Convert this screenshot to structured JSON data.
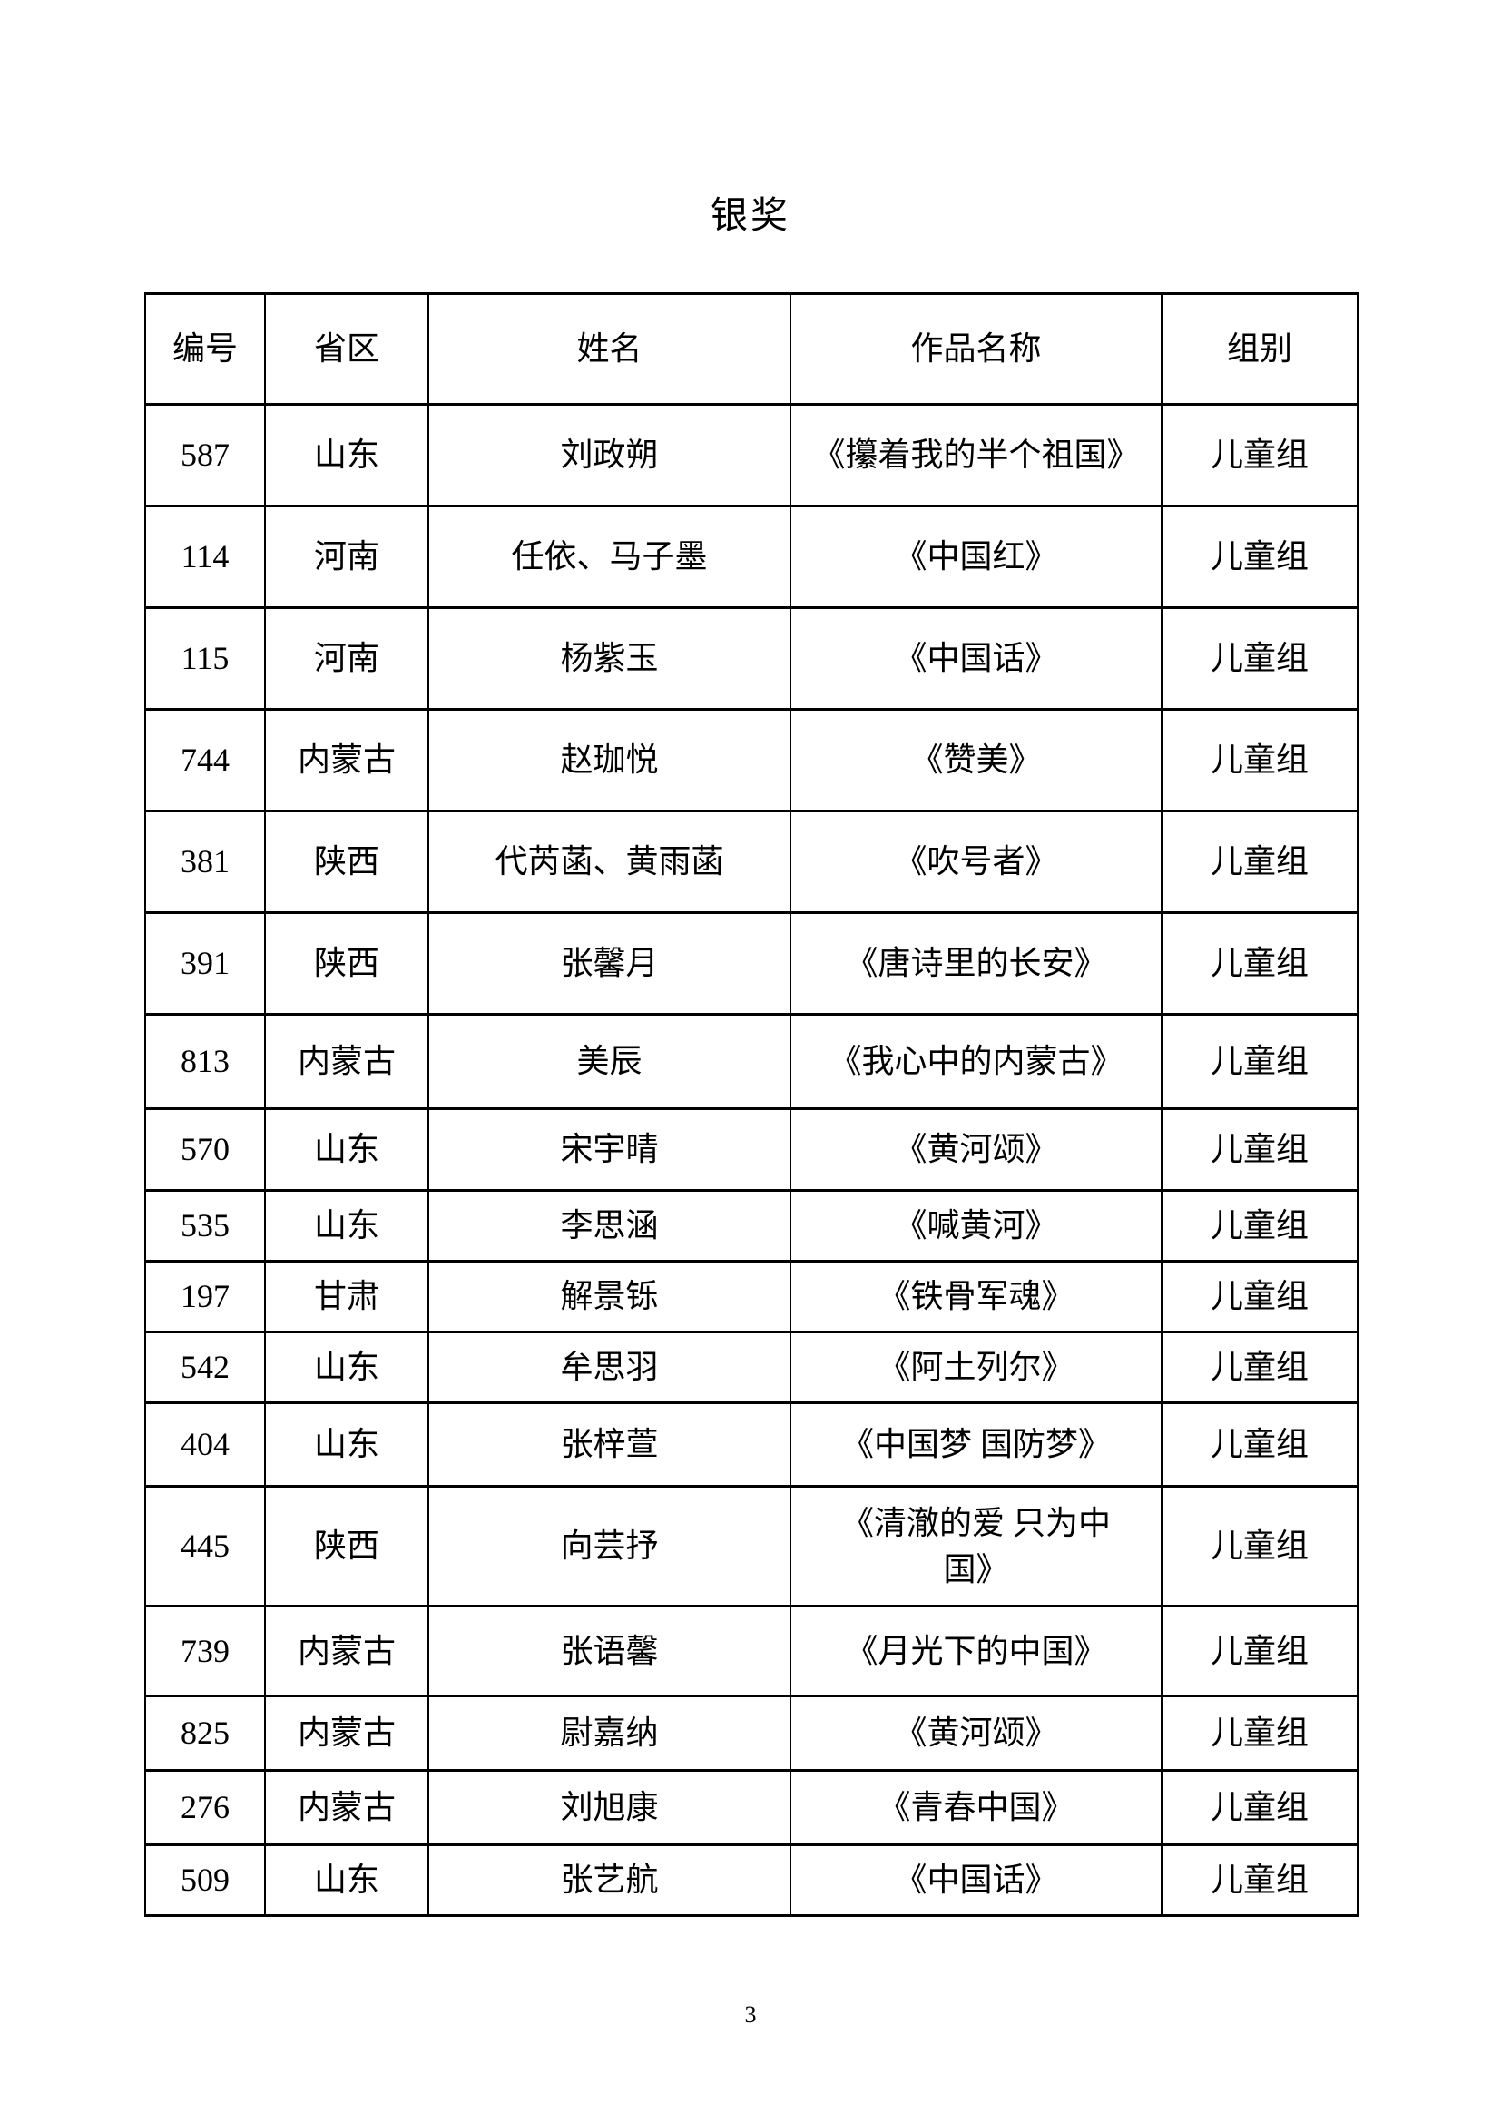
{
  "page": {
    "title": "银奖",
    "page_number": "3"
  },
  "table": {
    "columns": [
      {
        "key": "id",
        "label": "编号"
      },
      {
        "key": "province",
        "label": "省区"
      },
      {
        "key": "name",
        "label": "姓名"
      },
      {
        "key": "work",
        "label": "作品名称"
      },
      {
        "key": "group",
        "label": "组别"
      }
    ],
    "rows": [
      {
        "id": "587",
        "province": "山东",
        "name": "刘政朔",
        "work": "《攥着我的半个祖国》",
        "group": "儿童组"
      },
      {
        "id": "114",
        "province": "河南",
        "name": "任依、马子墨",
        "work": "《中国红》",
        "group": "儿童组"
      },
      {
        "id": "115",
        "province": "河南",
        "name": "杨紫玉",
        "work": "《中国话》",
        "group": "儿童组"
      },
      {
        "id": "744",
        "province": "内蒙古",
        "name": "赵珈悦",
        "work": "《赞美》",
        "group": "儿童组"
      },
      {
        "id": "381",
        "province": "陕西",
        "name": "代芮菡、黄雨菡",
        "work": "《吹号者》",
        "group": "儿童组"
      },
      {
        "id": "391",
        "province": "陕西",
        "name": "张馨月",
        "work": "《唐诗里的长安》",
        "group": "儿童组"
      },
      {
        "id": "813",
        "province": "内蒙古",
        "name": "美辰",
        "work": "《我心中的内蒙古》",
        "group": "儿童组"
      },
      {
        "id": "570",
        "province": "山东",
        "name": "宋宇晴",
        "work": "《黄河颂》",
        "group": "儿童组"
      },
      {
        "id": "535",
        "province": "山东",
        "name": "李思涵",
        "work": "《喊黄河》",
        "group": "儿童组"
      },
      {
        "id": "197",
        "province": "甘肃",
        "name": "解景铄",
        "work": "《铁骨军魂》",
        "group": "儿童组"
      },
      {
        "id": "542",
        "province": "山东",
        "name": "牟思羽",
        "work": "《阿土列尔》",
        "group": "儿童组"
      },
      {
        "id": "404",
        "province": "山东",
        "name": "张梓萱",
        "work": "《中国梦 国防梦》",
        "group": "儿童组"
      },
      {
        "id": "445",
        "province": "陕西",
        "name": "向芸抒",
        "work": "《清澈的爱 只为中\n国》",
        "group": "儿童组"
      },
      {
        "id": "739",
        "province": "内蒙古",
        "name": "张语馨",
        "work": "《月光下的中国》",
        "group": "儿童组"
      },
      {
        "id": "825",
        "province": "内蒙古",
        "name": "尉嘉纳",
        "work": "《黄河颂》",
        "group": "儿童组"
      },
      {
        "id": "276",
        "province": "内蒙古",
        "name": "刘旭康",
        "work": "《青春中国》",
        "group": "儿童组"
      },
      {
        "id": "509",
        "province": "山东",
        "name": "张艺航",
        "work": "《中国话》",
        "group": "儿童组"
      }
    ]
  }
}
